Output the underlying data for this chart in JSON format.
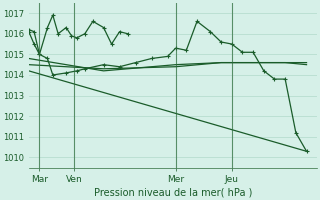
{
  "bg_color": "#d6f0e8",
  "grid_color": "#b8ddd0",
  "line_color": "#1a5c2a",
  "xlabel": "Pression niveau de la mer( hPa )",
  "ylim": [
    1009.5,
    1017.5
  ],
  "yticks": [
    1010,
    1011,
    1012,
    1013,
    1014,
    1015,
    1016,
    1017
  ],
  "day_labels": [
    "Mar",
    "Ven",
    "Mer",
    "Jeu"
  ],
  "series": [
    {
      "x": [
        0,
        2,
        4,
        7,
        9,
        11,
        14,
        16,
        18,
        21,
        24,
        28,
        31,
        34,
        37,
        40,
        43,
        46,
        55,
        59,
        63,
        68,
        72,
        76,
        80,
        84,
        88,
        92,
        96
      ],
      "y": [
        1016.2,
        1016.1,
        1015.0,
        1016.3,
        1016.9,
        1016.0,
        1016.3,
        1015.9,
        1015.8,
        1016.0,
        1016.6,
        1016.3,
        1015.5,
        1016.1,
        1016.0,
        null,
        null,
        null,
        null,
        null,
        null,
        null,
        null,
        null,
        null,
        null,
        null,
        null,
        null
      ],
      "has_markers": true
    },
    {
      "x": [
        0,
        2,
        4,
        7,
        9,
        14,
        18,
        21,
        28,
        34,
        40,
        46,
        52,
        55,
        59,
        63,
        68,
        72,
        76,
        80,
        84,
        88,
        92,
        96,
        100,
        104
      ],
      "y": [
        1016.1,
        1015.5,
        1015.0,
        1014.8,
        1014.0,
        1014.1,
        1014.2,
        1014.3,
        1014.5,
        1014.4,
        1014.6,
        1014.8,
        1014.9,
        1015.3,
        1015.2,
        1016.6,
        1016.1,
        1015.6,
        1015.5,
        1015.1,
        1015.1,
        1014.2,
        1013.8,
        1013.8,
        1011.2,
        1010.3
      ],
      "has_markers": true
    },
    {
      "x": [
        0,
        28,
        55,
        72,
        96,
        104
      ],
      "y": [
        1014.8,
        1014.2,
        1014.5,
        1014.6,
        1014.6,
        1014.6
      ],
      "has_markers": false
    },
    {
      "x": [
        0,
        28,
        55,
        72,
        96,
        104
      ],
      "y": [
        1014.5,
        1014.3,
        1014.4,
        1014.6,
        1014.6,
        1014.5
      ],
      "has_markers": false
    },
    {
      "x": [
        0,
        104
      ],
      "y": [
        1014.2,
        1010.3
      ],
      "has_markers": false
    }
  ]
}
